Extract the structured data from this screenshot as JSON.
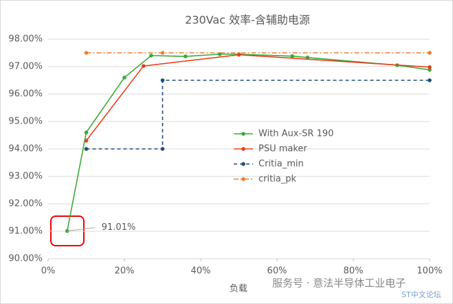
{
  "chart_data": {
    "type": "line",
    "title": "230Vac  效率-含辅助电源",
    "x_label": "负载",
    "xlim": [
      0,
      100
    ],
    "xticks": [
      {
        "value": 0,
        "label": "0%"
      },
      {
        "value": 20,
        "label": "20%"
      },
      {
        "value": 40,
        "label": "40%"
      },
      {
        "value": 60,
        "label": "60%"
      },
      {
        "value": 80,
        "label": "80%"
      },
      {
        "value": 100,
        "label": "100%"
      }
    ],
    "ylim": [
      90,
      98
    ],
    "yticks": [
      {
        "value": 90,
        "label": "90.00%"
      },
      {
        "value": 91,
        "label": "91.00%"
      },
      {
        "value": 92,
        "label": "92.00%"
      },
      {
        "value": 93,
        "label": "93.00%"
      },
      {
        "value": 94,
        "label": "94.00%"
      },
      {
        "value": 95,
        "label": "95.00%"
      },
      {
        "value": 96,
        "label": "96.00%"
      },
      {
        "value": 97,
        "label": "97.00%"
      },
      {
        "value": 98,
        "label": "98.00%"
      }
    ],
    "grid": true,
    "series": [
      {
        "name": "With Aux-SR 190",
        "color": "#3aaa35",
        "dash": "solid",
        "x": [
          5,
          10,
          20,
          27,
          36,
          45,
          50,
          64,
          68,
          91.5,
          100
        ],
        "values": [
          91.01,
          94.6,
          96.6,
          97.4,
          97.37,
          97.45,
          97.45,
          97.38,
          97.33,
          97.05,
          96.88
        ],
        "value_labels": [
          "91.01%",
          null,
          null,
          null,
          null,
          null,
          null,
          null,
          null,
          null,
          null
        ]
      },
      {
        "name": "PSU maker",
        "color": "#e8401c",
        "dash": "solid",
        "x": [
          10,
          25,
          50,
          100
        ],
        "values": [
          94.3,
          97.02,
          97.43,
          96.98
        ]
      },
      {
        "name": "Critia_min",
        "color": "#1f4e79",
        "dash": "dash",
        "x": [
          10,
          30,
          30,
          100
        ],
        "values": [
          94,
          94,
          96.5,
          96.5
        ]
      },
      {
        "name": "critia_pk",
        "color": "#ed7d31",
        "dash": "dashdot",
        "x": [
          10,
          30,
          100
        ],
        "values": [
          97.5,
          97.5,
          97.5
        ]
      }
    ],
    "watermark": "服务号 · 意法半导体工业电子",
    "source_mark": "ST中文论坛"
  }
}
